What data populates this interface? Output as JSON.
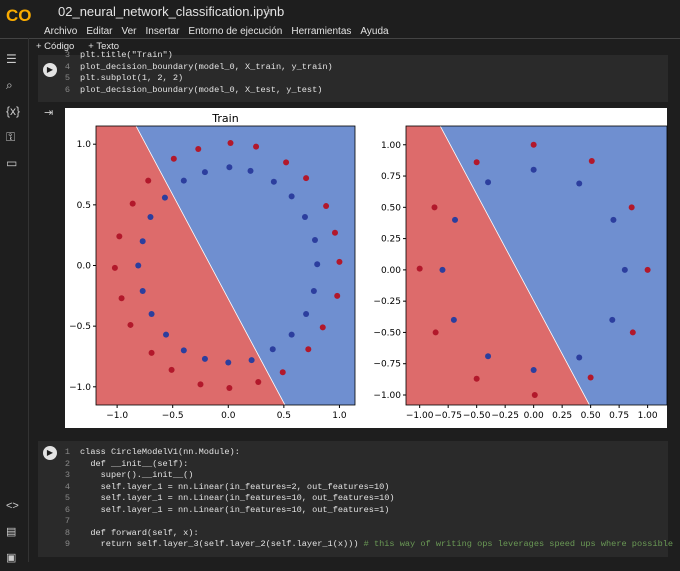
{
  "header": {
    "logo": "CO",
    "file_name": "02_neural_network_classification.ipynb",
    "menu": [
      "Archivo",
      "Editar",
      "Ver",
      "Insertar",
      "Entorno de ejecución",
      "Herramientas",
      "Ayuda"
    ]
  },
  "toolbar": [
    "+ Código",
    "+ Texto"
  ],
  "cell_1": {
    "lines": [
      {
        "n": 3,
        "code": "plt.title(\"Train\")"
      },
      {
        "n": 4,
        "code": "plot_decision_boundary(model_0, X_train, y_train)"
      },
      {
        "n": 5,
        "code": "plt.subplot(1, 2, 2)"
      },
      {
        "n": 6,
        "code": "plot_decision_boundary(model_0, X_test, y_test)"
      }
    ]
  },
  "output": {
    "plots": [
      {
        "title": "Train",
        "xlim": [
          -1.19,
          1.14
        ],
        "ylim": [
          -1.15,
          1.15
        ],
        "xticks": [
          {
            "value": -1,
            "label": "−1.0"
          },
          {
            "value": -0.5,
            "label": "−0.5"
          },
          {
            "value": 0,
            "label": "0.0"
          },
          {
            "value": 0.5,
            "label": "0.5"
          },
          {
            "value": 1,
            "label": "1.0"
          }
        ],
        "yticks": [
          {
            "value": -1,
            "label": "−1.0"
          },
          {
            "value": -0.5,
            "label": "−0.5"
          },
          {
            "value": 0,
            "label": "0.0"
          },
          {
            "value": 0.5,
            "label": "0.5"
          },
          {
            "value": 1,
            "label": "1.0"
          }
        ],
        "boundary": {
          "x": [
            -0.83,
            0.51
          ],
          "y": [
            1.15,
            -1.15
          ]
        },
        "region_colors": [
          "#dd6b6b",
          "#6f8fd0"
        ],
        "points": [
          {
            "color": "#b2182b",
            "x": [
              1.0,
              0.96,
              0.88,
              0.7,
              0.52,
              0.25,
              0.02,
              -0.27,
              -0.49,
              -0.72,
              -0.86,
              -0.98,
              -1.02,
              -0.96,
              -0.88,
              -0.69,
              -0.51,
              -0.25,
              0.01,
              0.27,
              0.49,
              0.72,
              0.85,
              0.98
            ],
            "y": [
              0.03,
              0.27,
              0.49,
              0.72,
              0.85,
              0.98,
              1.01,
              0.96,
              0.88,
              0.7,
              0.51,
              0.24,
              -0.02,
              -0.27,
              -0.49,
              -0.72,
              -0.86,
              -0.98,
              -1.01,
              -0.96,
              -0.88,
              -0.69,
              -0.51,
              -0.25
            ]
          },
          {
            "color": "#2c3e9e",
            "x": [
              0.8,
              0.78,
              0.69,
              0.57,
              0.41,
              0.2,
              0.01,
              -0.21,
              -0.4,
              -0.57,
              -0.7,
              -0.77,
              -0.81,
              -0.77,
              -0.69,
              -0.56,
              -0.4,
              -0.21,
              0.0,
              0.21,
              0.4,
              0.57,
              0.7,
              0.77
            ],
            "y": [
              0.01,
              0.21,
              0.4,
              0.57,
              0.69,
              0.78,
              0.81,
              0.77,
              0.7,
              0.56,
              0.4,
              0.2,
              0.0,
              -0.21,
              -0.4,
              -0.57,
              -0.7,
              -0.77,
              -0.8,
              -0.78,
              -0.69,
              -0.57,
              -0.4,
              -0.21
            ]
          }
        ]
      },
      {
        "xlim": [
          -1.12,
          1.17
        ],
        "ylim": [
          -1.08,
          1.15
        ],
        "xticks": [
          {
            "value": -1,
            "label": "−1.00"
          },
          {
            "value": -0.75,
            "label": "−0.75"
          },
          {
            "value": -0.5,
            "label": "−0.50"
          },
          {
            "value": -0.25,
            "label": "−0.25"
          },
          {
            "value": 0,
            "label": "0.00"
          },
          {
            "value": 0.25,
            "label": "0.25"
          },
          {
            "value": 0.5,
            "label": "0.50"
          },
          {
            "value": 0.75,
            "label": "0.75"
          },
          {
            "value": 1,
            "label": "1.00"
          }
        ],
        "yticks": [
          {
            "value": -1,
            "label": "−1.00"
          },
          {
            "value": -0.75,
            "label": "−0.75"
          },
          {
            "value": -0.5,
            "label": "−0.50"
          },
          {
            "value": -0.25,
            "label": "−0.25"
          },
          {
            "value": 0,
            "label": "0.00"
          },
          {
            "value": 0.25,
            "label": "0.25"
          },
          {
            "value": 0.5,
            "label": "0.50"
          },
          {
            "value": 0.75,
            "label": "0.75"
          },
          {
            "value": 1,
            "label": "1.00"
          }
        ],
        "boundary": {
          "x": [
            -0.82,
            0.49
          ],
          "y": [
            1.15,
            -1.08
          ]
        },
        "region_colors": [
          "#dd6b6b",
          "#6f8fd0"
        ],
        "points": [
          {
            "color": "#b2182b",
            "x": [
              1.0,
              0.86,
              0.51,
              0.0,
              -0.5,
              -0.87,
              -1.0,
              -0.86,
              -0.5,
              0.01,
              0.5,
              0.87
            ],
            "y": [
              0.0,
              0.5,
              0.87,
              1.0,
              0.86,
              0.5,
              0.01,
              -0.5,
              -0.87,
              -1.0,
              -0.86,
              -0.5
            ]
          },
          {
            "color": "#2c3e9e",
            "x": [
              0.8,
              0.7,
              0.4,
              0.0,
              -0.4,
              -0.69,
              -0.8,
              -0.7,
              -0.4,
              0.0,
              0.4,
              0.69
            ],
            "y": [
              0.0,
              0.4,
              0.69,
              0.8,
              0.7,
              0.4,
              0.0,
              -0.4,
              -0.69,
              -0.8,
              -0.7,
              -0.4
            ]
          }
        ]
      }
    ]
  },
  "cell_2": {
    "lines": [
      {
        "n": 1,
        "code": "class CircleModelV1(nn.Module):"
      },
      {
        "n": 2,
        "code": "  def __init__(self):"
      },
      {
        "n": 3,
        "code": "    super().__init__()"
      },
      {
        "n": 4,
        "code": "    self.layer_1 = nn.Linear(in_features=2, out_features=10)"
      },
      {
        "n": 5,
        "code": "    self.layer_1 = nn.Linear(in_features=10, out_features=10)"
      },
      {
        "n": 6,
        "code": "    self.layer_1 = nn.Linear(in_features=10, out_features=1)"
      },
      {
        "n": 7,
        "code": ""
      },
      {
        "n": 8,
        "code": "  def forward(self, x):"
      },
      {
        "n": 9,
        "code": "    return self.layer_3(self.layer_2(self.layer_1(x))) # this way of writing ops leverages speed ups where possible"
      }
    ]
  }
}
